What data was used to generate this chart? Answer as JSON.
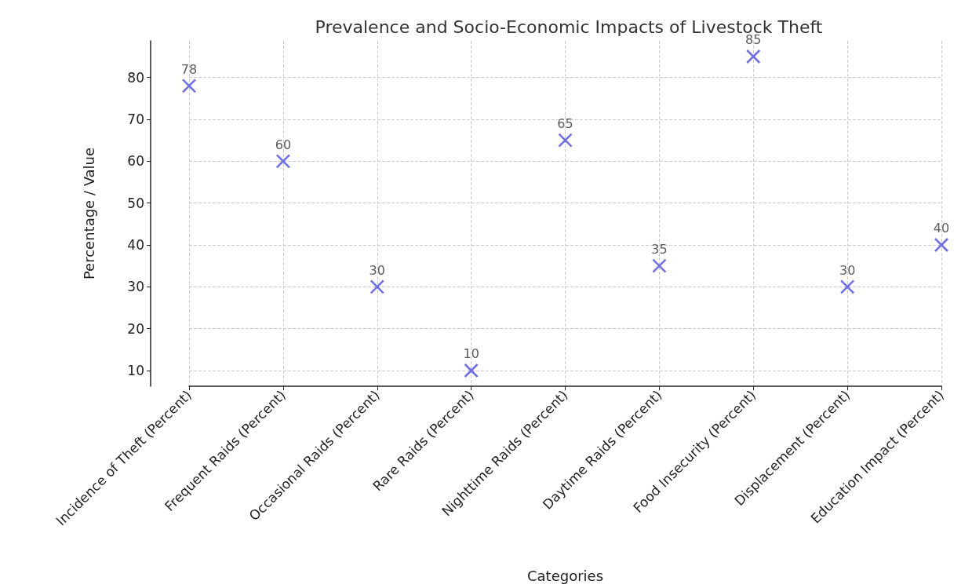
{
  "chart_data": {
    "type": "scatter",
    "title": "Prevalence and Socio-Economic Impacts of Livestock Theft",
    "xlabel": "Categories",
    "ylabel": "Percentage / Value",
    "categories": [
      "Incidence of Theft (Percent)",
      "Frequent Raids (Percent)",
      "Occasional Raids (Percent)",
      "Rare Raids (Percent)",
      "Nighttime Raids (Percent)",
      "Daytime Raids (Percent)",
      "Food Insecurity (Percent)",
      "Displacement (Percent)",
      "Education Impact (Percent)"
    ],
    "values": [
      78,
      60,
      30,
      10,
      65,
      35,
      85,
      30,
      40
    ],
    "color": "#4b4bf0",
    "ylim": [
      6.25,
      88.75
    ],
    "yticks": [
      10,
      20,
      30,
      40,
      50,
      60,
      70,
      80
    ],
    "grid": true,
    "marker": "cross",
    "data_labels": true
  }
}
